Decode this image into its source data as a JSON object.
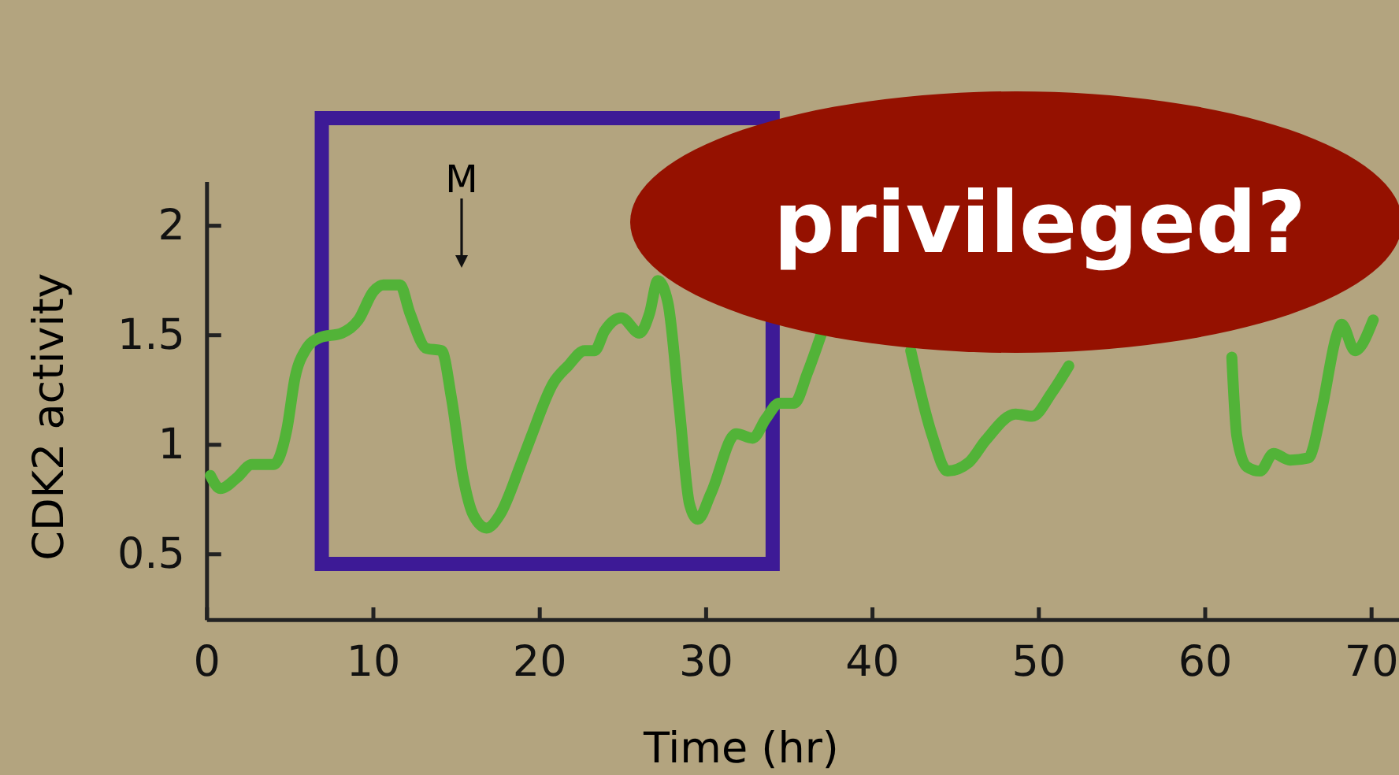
{
  "chart_data": {
    "type": "line",
    "xlabel": "Time (hr)",
    "ylabel": "CDK2 activity",
    "xlim": [
      0,
      71.8
    ],
    "ylim": [
      0.2,
      2.2
    ],
    "xticks": [
      0,
      10,
      20,
      30,
      40,
      50,
      60,
      70
    ],
    "yticks": [
      0.5,
      1,
      1.5,
      2
    ],
    "marker": "none",
    "line_style": "solid",
    "annotations": [
      "privileged?",
      "M"
    ],
    "series": [
      {
        "color": "#52b338",
        "x": [
          0.2,
          0.8,
          1.8,
          2.7,
          4.0,
          4.8,
          5.3,
          5.9,
          6.8,
          8.1,
          9.1,
          10.0,
          10.6,
          11.6,
          12.2,
          13.2,
          14.1,
          14.7,
          15.4,
          16.0,
          16.8,
          17.6,
          18.9,
          19.5,
          20.8,
          21.7,
          22.7,
          23.3,
          23.9,
          24.9,
          26.0,
          26.6,
          27.1,
          27.7,
          28.4,
          29.0,
          29.5,
          30.3,
          31.8,
          32.8,
          33.6,
          34.4,
          35.3,
          36.1,
          36.9,
          39.5,
          42.3,
          43.6,
          44.5,
          45.8,
          46.8,
          48.6,
          49.6,
          50.8,
          51.8,
          57.0,
          61.6,
          61.9,
          62.5,
          63.3,
          64.1,
          65.1,
          66.2,
          67.0,
          67.9,
          68.2,
          69.0,
          70.1
        ],
        "values": [
          0.86,
          0.8,
          0.85,
          0.91,
          0.91,
          1.07,
          1.31,
          1.43,
          1.49,
          1.51,
          1.57,
          1.7,
          1.73,
          1.73,
          1.6,
          1.44,
          1.43,
          1.21,
          0.85,
          0.68,
          0.62,
          0.68,
          0.92,
          1.04,
          1.28,
          1.36,
          1.43,
          1.43,
          1.52,
          1.58,
          1.51,
          1.6,
          1.75,
          1.65,
          1.16,
          0.73,
          0.66,
          0.78,
          1.05,
          1.03,
          1.12,
          1.19,
          1.19,
          1.33,
          1.5,
          null,
          1.43,
          1.04,
          0.88,
          0.92,
          1.02,
          1.14,
          1.13,
          1.24,
          1.36,
          null,
          1.4,
          1.04,
          0.9,
          0.88,
          0.96,
          0.93,
          0.94,
          1.16,
          1.5,
          1.55,
          1.43,
          1.57
        ]
      }
    ]
  }
}
